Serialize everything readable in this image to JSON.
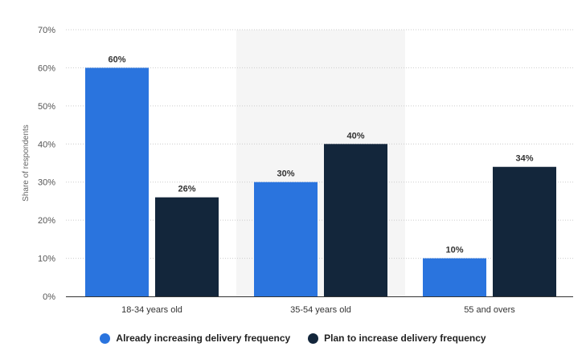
{
  "colors": {
    "series_1": "#2a74de",
    "series_2": "#13263b",
    "grid": "#cccccc",
    "shade": "#f5f5f5",
    "axis": "#333333"
  },
  "chart_data": {
    "type": "bar",
    "title": "",
    "xlabel": "",
    "ylabel": "Share of respondents",
    "ylim": [
      0,
      70
    ],
    "y_ticks": [
      0,
      10,
      20,
      30,
      40,
      50,
      60,
      70
    ],
    "y_tick_labels": [
      "0%",
      "10%",
      "20%",
      "30%",
      "40%",
      "50%",
      "60%",
      "70%"
    ],
    "grid": true,
    "legend_position": "bottom-center",
    "categories": [
      "18-34 years old",
      "35-54 years old",
      "55 and overs"
    ],
    "series": [
      {
        "name": "Already increasing delivery frequency",
        "values": [
          60,
          30,
          10
        ],
        "labels": [
          "60%",
          "30%",
          "10%"
        ]
      },
      {
        "name": "Plan to increase delivery frequency",
        "values": [
          26,
          40,
          34
        ],
        "labels": [
          "26%",
          "40%",
          "34%"
        ]
      }
    ]
  }
}
